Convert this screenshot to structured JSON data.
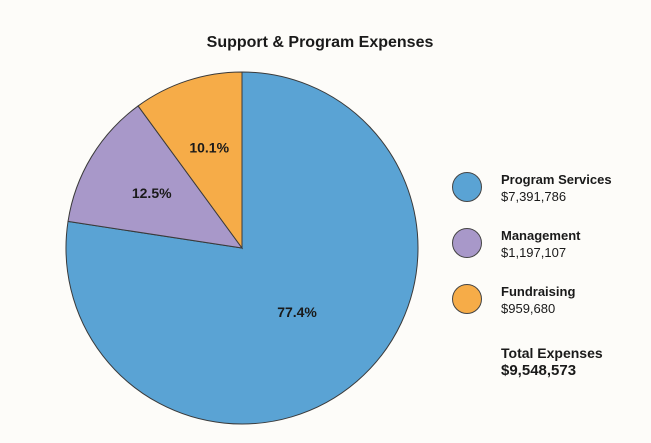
{
  "chart_data": {
    "type": "pie",
    "title": "Support & Program Expenses",
    "categories": [
      "Program Services",
      "Management",
      "Fundraising"
    ],
    "values": [
      7391786,
      1197107,
      959680
    ],
    "value_labels": [
      "$7,391,786",
      "$1,197,107",
      "$959,680"
    ],
    "percent_labels": [
      "77.4%",
      "12.5%",
      "10.1%"
    ],
    "colors": [
      "#5aa3d4",
      "#a898c9",
      "#f6ac48"
    ],
    "total_label": "Total Expenses",
    "total_value": "$9,548,573",
    "legend_position": "right"
  }
}
